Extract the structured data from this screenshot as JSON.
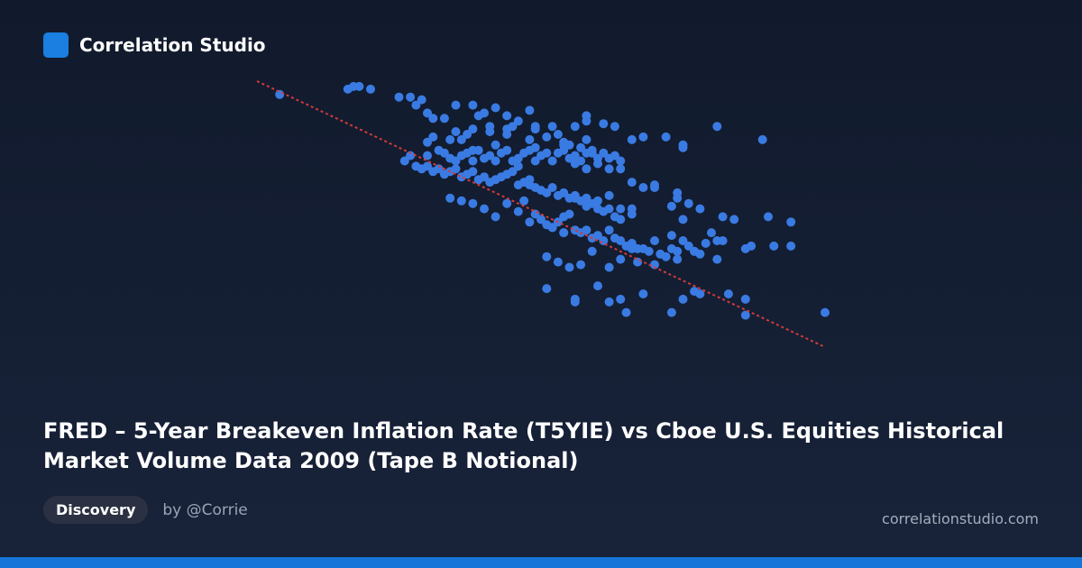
{
  "brand": {
    "name": "Correlation Studio",
    "logo_color": "#1a7fe0"
  },
  "title": "FRED – 5-Year Breakeven Inflation Rate (T5YIE) vs Cboe U.S. Equities Historical Market Volume Data 2009 (Tape B Notional)",
  "tag": "Discovery",
  "author": "by @Corrie",
  "site": "correlationstudio.com",
  "colors": {
    "point": "#3a7be3",
    "trend": "#d43a3a",
    "bar": "#1575d9"
  },
  "chart_data": {
    "type": "scatter",
    "title": "",
    "xlabel": "",
    "ylabel": "",
    "axes_visible": false,
    "grid": false,
    "xlim": [
      0,
      100
    ],
    "ylim": [
      0,
      100
    ],
    "trendline": {
      "x": [
        0,
        100
      ],
      "y": [
        100,
        0
      ],
      "style": "dashed"
    },
    "points": [
      [
        4,
        95
      ],
      [
        16,
        97
      ],
      [
        17,
        98
      ],
      [
        18,
        98
      ],
      [
        20,
        97
      ],
      [
        25,
        94
      ],
      [
        27,
        94
      ],
      [
        29,
        93
      ],
      [
        28,
        91
      ],
      [
        30,
        88
      ],
      [
        31,
        86
      ],
      [
        33,
        86
      ],
      [
        35,
        91
      ],
      [
        38,
        91
      ],
      [
        39,
        87
      ],
      [
        40,
        88
      ],
      [
        42,
        90
      ],
      [
        44,
        87
      ],
      [
        46,
        85
      ],
      [
        48,
        89
      ],
      [
        41,
        83
      ],
      [
        45,
        83
      ],
      [
        49,
        83
      ],
      [
        52,
        83
      ],
      [
        56,
        83
      ],
      [
        58,
        87
      ],
      [
        58,
        85
      ],
      [
        61,
        84
      ],
      [
        63,
        83
      ],
      [
        66,
        78
      ],
      [
        68,
        79
      ],
      [
        72,
        79
      ],
      [
        75,
        76
      ],
      [
        75,
        75
      ],
      [
        81,
        83
      ],
      [
        89,
        78
      ],
      [
        35,
        81
      ],
      [
        37,
        80
      ],
      [
        38,
        82
      ],
      [
        41,
        81
      ],
      [
        44,
        82
      ],
      [
        44,
        80
      ],
      [
        48,
        78
      ],
      [
        49,
        82
      ],
      [
        51,
        79
      ],
      [
        53,
        80
      ],
      [
        54,
        76
      ],
      [
        55,
        76
      ],
      [
        57,
        75
      ],
      [
        59,
        74
      ],
      [
        61,
        73
      ],
      [
        63,
        72
      ],
      [
        30,
        72
      ],
      [
        32,
        74
      ],
      [
        33,
        73
      ],
      [
        34,
        71
      ],
      [
        35,
        70
      ],
      [
        36,
        72
      ],
      [
        37,
        73
      ],
      [
        38,
        70
      ],
      [
        39,
        74
      ],
      [
        40,
        71
      ],
      [
        41,
        72
      ],
      [
        42,
        70
      ],
      [
        43,
        73
      ],
      [
        44,
        74
      ],
      [
        45,
        70
      ],
      [
        46,
        71
      ],
      [
        47,
        73
      ],
      [
        48,
        74
      ],
      [
        49,
        70
      ],
      [
        50,
        72
      ],
      [
        51,
        73
      ],
      [
        52,
        70
      ],
      [
        53,
        73
      ],
      [
        54,
        74
      ],
      [
        55,
        71
      ],
      [
        56,
        72
      ],
      [
        57,
        70
      ],
      [
        58,
        73
      ],
      [
        59,
        73
      ],
      [
        60,
        71
      ],
      [
        62,
        71
      ],
      [
        64,
        70
      ],
      [
        26,
        70
      ],
      [
        27,
        72
      ],
      [
        28,
        68
      ],
      [
        29,
        67
      ],
      [
        30,
        68
      ],
      [
        31,
        66
      ],
      [
        32,
        67
      ],
      [
        33,
        65
      ],
      [
        34,
        66
      ],
      [
        35,
        67
      ],
      [
        36,
        64
      ],
      [
        37,
        65
      ],
      [
        38,
        66
      ],
      [
        39,
        63
      ],
      [
        40,
        64
      ],
      [
        41,
        62
      ],
      [
        42,
        63
      ],
      [
        43,
        64
      ],
      [
        44,
        65
      ],
      [
        45,
        66
      ],
      [
        46,
        68
      ],
      [
        47,
        62
      ],
      [
        48,
        61
      ],
      [
        49,
        60
      ],
      [
        50,
        59
      ],
      [
        51,
        58
      ],
      [
        52,
        60
      ],
      [
        53,
        57
      ],
      [
        54,
        58
      ],
      [
        55,
        56
      ],
      [
        56,
        57
      ],
      [
        57,
        55
      ],
      [
        58,
        56
      ],
      [
        59,
        54
      ],
      [
        60,
        52
      ],
      [
        61,
        51
      ],
      [
        62,
        57
      ],
      [
        63,
        49
      ],
      [
        64,
        48
      ],
      [
        66,
        52
      ],
      [
        70,
        61
      ],
      [
        74,
        58
      ],
      [
        74,
        56
      ],
      [
        76,
        54
      ],
      [
        78,
        52
      ],
      [
        82,
        49
      ],
      [
        84,
        48
      ],
      [
        90,
        49
      ],
      [
        94,
        47
      ],
      [
        56,
        69
      ],
      [
        58,
        67
      ],
      [
        60,
        69
      ],
      [
        62,
        67
      ],
      [
        64,
        67
      ],
      [
        66,
        62
      ],
      [
        68,
        60
      ],
      [
        70,
        60
      ],
      [
        73,
        53
      ],
      [
        75,
        48
      ],
      [
        50,
        48
      ],
      [
        51,
        46
      ],
      [
        52,
        45
      ],
      [
        53,
        47
      ],
      [
        54,
        49
      ],
      [
        55,
        50
      ],
      [
        56,
        44
      ],
      [
        57,
        43
      ],
      [
        58,
        44
      ],
      [
        59,
        41
      ],
      [
        60,
        42
      ],
      [
        61,
        40
      ],
      [
        62,
        44
      ],
      [
        63,
        41
      ],
      [
        64,
        40
      ],
      [
        65,
        38
      ],
      [
        66,
        37
      ],
      [
        67,
        37
      ],
      [
        68,
        37
      ],
      [
        69,
        36
      ],
      [
        70,
        40
      ],
      [
        71,
        35
      ],
      [
        72,
        34
      ],
      [
        73,
        37
      ],
      [
        74,
        36
      ],
      [
        75,
        40
      ],
      [
        76,
        38
      ],
      [
        77,
        36
      ],
      [
        78,
        35
      ],
      [
        79,
        39
      ],
      [
        80,
        43
      ],
      [
        81,
        40
      ],
      [
        82,
        40
      ],
      [
        86,
        37
      ],
      [
        87,
        38
      ],
      [
        91,
        38
      ],
      [
        94,
        38
      ],
      [
        56,
        56
      ],
      [
        58,
        53
      ],
      [
        60,
        55
      ],
      [
        62,
        52
      ],
      [
        64,
        52
      ],
      [
        66,
        50
      ],
      [
        44,
        54
      ],
      [
        46,
        51
      ],
      [
        48,
        47
      ],
      [
        49,
        50
      ],
      [
        34,
        56
      ],
      [
        36,
        55
      ],
      [
        38,
        54
      ],
      [
        40,
        52
      ],
      [
        42,
        49
      ],
      [
        48,
        63
      ],
      [
        46,
        61
      ],
      [
        47,
        55
      ],
      [
        52,
        45
      ],
      [
        54,
        43
      ],
      [
        53,
        32
      ],
      [
        51,
        34
      ],
      [
        55,
        30
      ],
      [
        57,
        31
      ],
      [
        62,
        30
      ],
      [
        64,
        33
      ],
      [
        67,
        32
      ],
      [
        70,
        31
      ],
      [
        74,
        33
      ],
      [
        77,
        36
      ],
      [
        81,
        33
      ],
      [
        51,
        22
      ],
      [
        56,
        17
      ],
      [
        62,
        17
      ],
      [
        64,
        18
      ],
      [
        68,
        20
      ],
      [
        75,
        18
      ],
      [
        77,
        21
      ],
      [
        78,
        20
      ],
      [
        83,
        20
      ],
      [
        86,
        18
      ],
      [
        56,
        18
      ],
      [
        60,
        23
      ],
      [
        65,
        13
      ],
      [
        73,
        13
      ],
      [
        86,
        12
      ],
      [
        100,
        13
      ],
      [
        59,
        36
      ],
      [
        54,
        43
      ],
      [
        66,
        39
      ],
      [
        73,
        42
      ],
      [
        38,
        74
      ],
      [
        49,
        75
      ],
      [
        54,
        77
      ],
      [
        58,
        78
      ],
      [
        36,
        78
      ],
      [
        42,
        76
      ],
      [
        30,
        77
      ],
      [
        31,
        79
      ],
      [
        34,
        78
      ]
    ]
  }
}
